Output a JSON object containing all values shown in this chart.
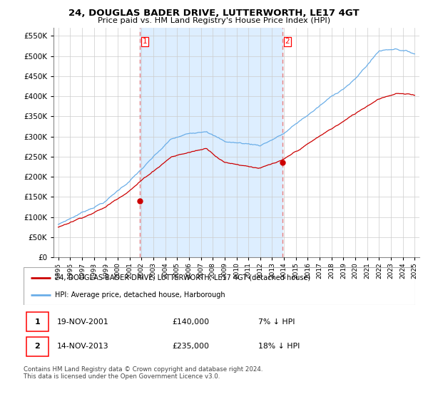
{
  "title": "24, DOUGLAS BADER DRIVE, LUTTERWORTH, LE17 4GT",
  "subtitle": "Price paid vs. HM Land Registry's House Price Index (HPI)",
  "legend_line1": "24, DOUGLAS BADER DRIVE, LUTTERWORTH, LE17 4GT (detached house)",
  "legend_line2": "HPI: Average price, detached house, Harborough",
  "annotation1_date": "19-NOV-2001",
  "annotation1_price": "£140,000",
  "annotation1_hpi": "7% ↓ HPI",
  "annotation2_date": "14-NOV-2013",
  "annotation2_price": "£235,000",
  "annotation2_hpi": "18% ↓ HPI",
  "footnote": "Contains HM Land Registry data © Crown copyright and database right 2024.\nThis data is licensed under the Open Government Licence v3.0.",
  "hpi_color": "#6aaee8",
  "paid_color": "#cc0000",
  "vline_color": "#e88080",
  "shade_color": "#ddeeff",
  "marker1_x": 2001.88,
  "marker1_y": 140000,
  "marker2_x": 2013.88,
  "marker2_y": 235000,
  "ylim_min": 0,
  "ylim_max": 570000,
  "xlim_min": 1994.6,
  "xlim_max": 2025.4,
  "yticks": [
    0,
    50000,
    100000,
    150000,
    200000,
    250000,
    300000,
    350000,
    400000,
    450000,
    500000,
    550000
  ],
  "xtick_years": [
    1995,
    1996,
    1997,
    1998,
    1999,
    2000,
    2001,
    2002,
    2003,
    2004,
    2005,
    2006,
    2007,
    2008,
    2009,
    2010,
    2011,
    2012,
    2013,
    2014,
    2015,
    2016,
    2017,
    2018,
    2019,
    2020,
    2021,
    2022,
    2023,
    2024,
    2025
  ]
}
